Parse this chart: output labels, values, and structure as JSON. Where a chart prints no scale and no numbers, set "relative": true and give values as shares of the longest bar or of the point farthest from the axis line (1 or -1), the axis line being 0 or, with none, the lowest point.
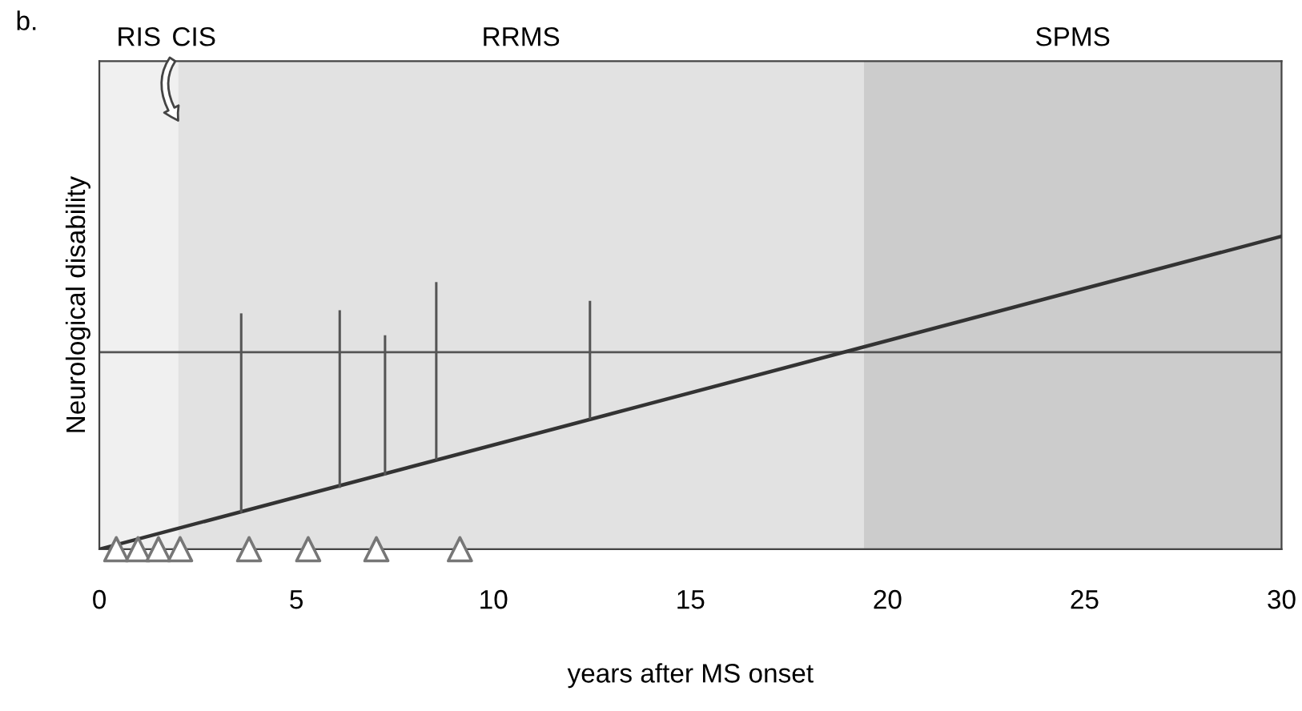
{
  "chart_data": {
    "type": "line",
    "relative": true,
    "xlabel": "years after MS onset",
    "ylabel": "Neurological disability",
    "xlim": [
      0,
      30
    ],
    "xticks": [
      0,
      5,
      10,
      15,
      20,
      25,
      30
    ],
    "grid": false,
    "legend": false,
    "series": [
      {
        "color": "#333333",
        "x": [
          0,
          30
        ],
        "values": [
          0,
          1
        ]
      },
      {
        "color": "#555555",
        "x": [
          3.6,
          3.6
        ],
        "values": [
          0.12,
          0.75
        ]
      },
      {
        "color": "#555555",
        "x": [
          6.1,
          6.1
        ],
        "values": [
          0.2,
          0.76
        ]
      },
      {
        "color": "#555555",
        "x": [
          7.25,
          7.25
        ],
        "values": [
          0.24,
          0.68
        ]
      },
      {
        "color": "#555555",
        "x": [
          8.55,
          8.55
        ],
        "values": [
          0.29,
          0.85
        ]
      },
      {
        "color": "#555555",
        "x": [
          12.45,
          12.45
        ],
        "values": [
          0.42,
          0.79
        ]
      },
      {
        "type": "scatter",
        "color": "#777777",
        "marker": "triangle",
        "x": [
          0.43,
          0.98,
          1.5,
          2.05,
          3.8,
          5.3,
          7.03,
          9.15
        ],
        "values": [
          0,
          0,
          0,
          0,
          0,
          0,
          0,
          0
        ]
      }
    ],
    "ref_lines": [
      {
        "axis": "y",
        "value": 0.63,
        "color": "#555555"
      }
    ],
    "bands": [
      {
        "axis": "x",
        "from": 0,
        "to": 2.0,
        "label": "RIS",
        "color": "#f0f0f0"
      },
      {
        "axis": "x",
        "from": 2.0,
        "to": 19.4,
        "label": "RRMS",
        "color": "#e2e2e2"
      },
      {
        "axis": "x",
        "from": 19.4,
        "to": 30,
        "label": "SPMS",
        "color": "#cccccc"
      }
    ],
    "annotations": [
      "b.",
      {
        "text": "CIS",
        "x": 2.0,
        "y": 1.37
      }
    ]
  }
}
